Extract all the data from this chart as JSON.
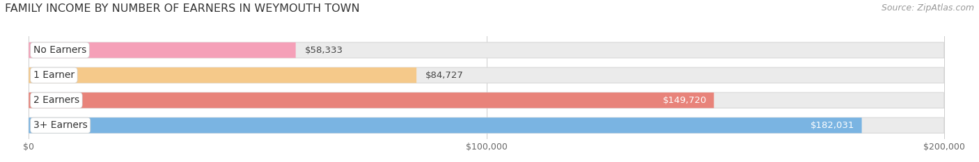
{
  "title": "FAMILY INCOME BY NUMBER OF EARNERS IN WEYMOUTH TOWN",
  "source": "Source: ZipAtlas.com",
  "categories": [
    "No Earners",
    "1 Earner",
    "2 Earners",
    "3+ Earners"
  ],
  "values": [
    58333,
    84727,
    149720,
    182031
  ],
  "bar_colors": [
    "#f5a0b8",
    "#f5c98a",
    "#e8837a",
    "#7ab4e2"
  ],
  "track_color": "#ebebeb",
  "track_edge_color": "#d8d8d8",
  "xlim": [
    0,
    200000
  ],
  "xticks": [
    0,
    100000,
    200000
  ],
  "xtick_labels": [
    "$0",
    "$100,000",
    "$200,000"
  ],
  "background_color": "#ffffff",
  "title_fontsize": 11.5,
  "source_fontsize": 9,
  "category_fontsize": 10,
  "value_fontsize": 9.5,
  "value_inside_threshold": 0.6
}
